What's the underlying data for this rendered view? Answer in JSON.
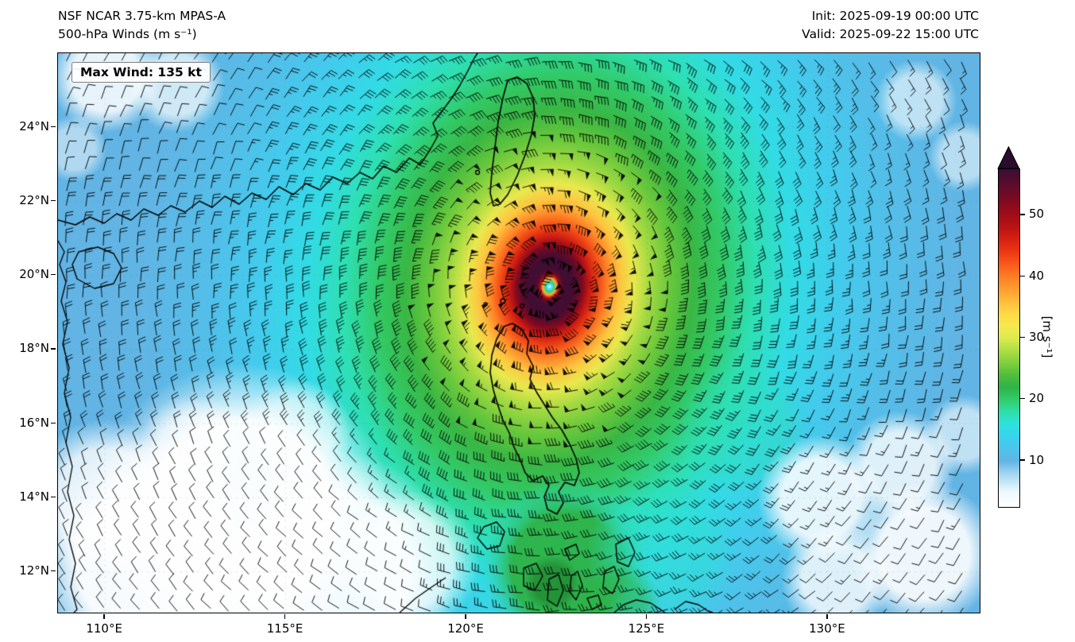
{
  "header": {
    "title_line1": "NSF NCAR 3.75-km MPAS-A",
    "title_line2": "500-hPa Winds (m s⁻¹)",
    "init_label": "Init: 2025-09-19 00:00 UTC",
    "valid_label": "Valid: 2025-09-22 15:00 UTC"
  },
  "map": {
    "max_wind_label": "Max Wind: 135 kt",
    "x_tick_labels": [
      "110°E",
      "115°E",
      "120°E",
      "125°E",
      "130°E"
    ],
    "y_tick_labels": [
      "24°N",
      "22°N",
      "20°N",
      "18°N",
      "16°N",
      "14°N",
      "12°N"
    ]
  },
  "colorbar": {
    "label": "[m s⁻¹]",
    "tick_labels": [
      "50",
      "40",
      "30",
      "20",
      "10"
    ],
    "tick_values": [
      50,
      40,
      30,
      20,
      10
    ],
    "min_value": 2.5,
    "max_value": 57.5,
    "over_color": "#2b0c2e",
    "colormap": [
      {
        "value": 2.5,
        "color": "#ffffff"
      },
      {
        "value": 5,
        "color": "#eef8fd"
      },
      {
        "value": 8,
        "color": "#9fd5f1"
      },
      {
        "value": 10,
        "color": "#62b4e4"
      },
      {
        "value": 12,
        "color": "#4cc4ec"
      },
      {
        "value": 14,
        "color": "#38d4ee"
      },
      {
        "value": 16,
        "color": "#2ee2df"
      },
      {
        "value": 18,
        "color": "#2edfa8"
      },
      {
        "value": 20,
        "color": "#32cc6a"
      },
      {
        "value": 22,
        "color": "#2eb348"
      },
      {
        "value": 24,
        "color": "#50bf3c"
      },
      {
        "value": 26,
        "color": "#80d03c"
      },
      {
        "value": 28,
        "color": "#aede44"
      },
      {
        "value": 30,
        "color": "#dcea4e"
      },
      {
        "value": 32,
        "color": "#f6e94e"
      },
      {
        "value": 34,
        "color": "#ffd946"
      },
      {
        "value": 36,
        "color": "#ffbb3c"
      },
      {
        "value": 38,
        "color": "#ff9d30"
      },
      {
        "value": 40,
        "color": "#ff7d25"
      },
      {
        "value": 42,
        "color": "#fa5a1a"
      },
      {
        "value": 44,
        "color": "#ec3813"
      },
      {
        "value": 46,
        "color": "#d72212"
      },
      {
        "value": 48,
        "color": "#ba1312"
      },
      {
        "value": 50,
        "color": "#a00d17"
      },
      {
        "value": 52,
        "color": "#850a1f"
      },
      {
        "value": 54,
        "color": "#690b28"
      },
      {
        "value": 56,
        "color": "#4e0c30"
      },
      {
        "value": 57.5,
        "color": "#3a0e33"
      }
    ]
  },
  "chart_data": {
    "type": "heatmap",
    "title": "NSF NCAR 3.75-km MPAS-A — 500-hPa Winds (m s⁻¹)",
    "init_time": "2025-09-19 00:00 UTC",
    "valid_time": "2025-09-22 15:00 UTC",
    "variable": "500-hPa wind speed with wind barbs",
    "units": "m s⁻¹",
    "max_wind_kt": 135,
    "lon_range_deg_east": [
      108.7,
      134.2
    ],
    "lat_range_deg_north": [
      10.9,
      26.0
    ],
    "x_ticks_deg_east": [
      110,
      115,
      120,
      125,
      130
    ],
    "y_ticks_deg_north": [
      24,
      22,
      20,
      18,
      16,
      14,
      12
    ],
    "colorbar_range_ms": [
      2.5,
      57.5
    ],
    "colorbar_ticks_ms": [
      10,
      20,
      30,
      40,
      50
    ],
    "storm_center": {
      "lon_deg_east": 122.3,
      "lat_deg_north": 19.7
    },
    "radial_wind_profile_deg_ms": [
      [
        0,
        12
      ],
      [
        0.09,
        14
      ],
      [
        0.18,
        38
      ],
      [
        0.26,
        52
      ],
      [
        0.35,
        57
      ],
      [
        0.66,
        57
      ],
      [
        0.88,
        52
      ],
      [
        1.05,
        47
      ],
      [
        1.35,
        42
      ],
      [
        1.8,
        36
      ],
      [
        2.2,
        31
      ],
      [
        2.7,
        27
      ],
      [
        3.4,
        24
      ],
      [
        4.4,
        20.5
      ],
      [
        5.6,
        17
      ],
      [
        6.9,
        14
      ],
      [
        8.3,
        12
      ],
      [
        10,
        10.3
      ],
      [
        12,
        10
      ],
      [
        15,
        9.9
      ],
      [
        20,
        9.8
      ]
    ],
    "legend_position": "right",
    "grid": false
  }
}
